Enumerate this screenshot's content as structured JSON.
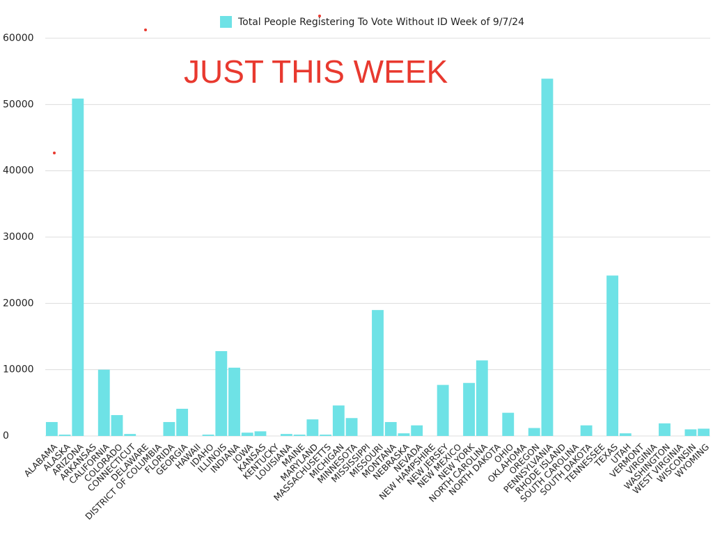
{
  "chart_data": {
    "type": "bar",
    "annotation": "JUST THIS WEEK",
    "categories": [
      "ALABAMA",
      "ALASKA",
      "ARIZONA",
      "ARKANSAS",
      "CALIFORNIA",
      "COLORADO",
      "CONNECTICUT",
      "DELAWARE",
      "DISTRICT OF COLUMBIA",
      "FLORIDA",
      "GEORGIA",
      "HAWAII",
      "IDAHO",
      "ILLINOIS",
      "INDIANA",
      "IOWA",
      "KANSAS",
      "KENTUCKY",
      "LOUISIANA",
      "MAINE",
      "MARYLAND",
      "MASSACHUSETTS",
      "MICHIGAN",
      "MINNESOTA",
      "MISSISSIPPI",
      "MISSOURI",
      "MONTANA",
      "NEBRASKA",
      "NEVADA",
      "NEW HAMPSHIRE",
      "NEW JERSEY",
      "NEW MEXICO",
      "NEW YORK",
      "NORTH CAROLINA",
      "NORTH DAKOTA",
      "OHIO",
      "OKLAHOMA",
      "OREGON",
      "PENNSYLVANIA",
      "RHODE ISLAND",
      "SOUTH CAROLINA",
      "SOUTH DAKOTA",
      "TENNESSEE",
      "TEXAS",
      "UTAH",
      "VERMONT",
      "VIRGINIA",
      "WASHINGTON",
      "WEST VIRGINIA",
      "WISCONSIN",
      "WYOMING"
    ],
    "series": [
      {
        "name": "Total People Registering To Vote Without ID Week of 9/7/24",
        "color": "#6ee2e6",
        "values": [
          2100,
          200,
          50900,
          0,
          10000,
          3150,
          300,
          0,
          0,
          2100,
          4100,
          0,
          200,
          12800,
          10300,
          500,
          700,
          0,
          300,
          200,
          2500,
          200,
          4600,
          2700,
          0,
          19000,
          2100,
          400,
          1600,
          0,
          7700,
          0,
          8000,
          11400,
          0,
          3500,
          0,
          1200,
          53900,
          0,
          0,
          1600,
          0,
          24200,
          400,
          0,
          0,
          1900,
          0,
          1000,
          1100
        ]
      }
    ],
    "ylim": [
      0,
      60000
    ],
    "yticks": [
      0,
      10000,
      20000,
      30000,
      40000,
      50000,
      60000
    ],
    "grid": true
  }
}
